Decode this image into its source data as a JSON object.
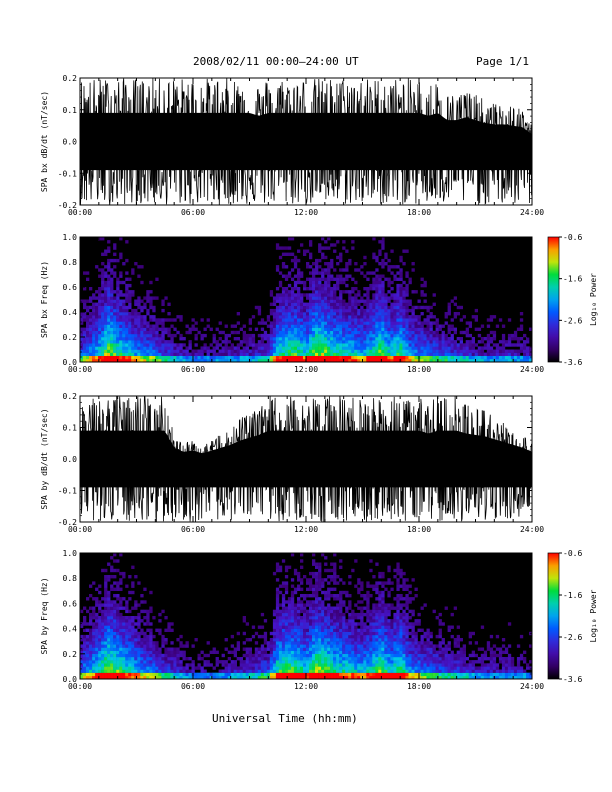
{
  "header": {
    "title": "2008/02/11   00:00–24:00 UT",
    "page": "Page 1/1"
  },
  "footer": {
    "xlabel": "Universal Time (hh:mm)"
  },
  "chart_data": [
    {
      "type": "line",
      "ylabel": "SPA bx dB/dt (nT/sec)",
      "x_ticks": [
        "00:00",
        "06:00",
        "12:00",
        "18:00",
        "24:00"
      ],
      "y_ticks": [
        "0.2",
        "0.1",
        "0.0",
        "-0.1",
        "-0.2"
      ],
      "xlim": [
        0,
        24
      ],
      "ylim": [
        -0.2,
        0.2
      ],
      "x_unit": "hours UT",
      "envelope": {
        "x": [
          0,
          0.5,
          1,
          1.5,
          2,
          2.5,
          3,
          3.5,
          4,
          4.5,
          5,
          5.5,
          6,
          6.5,
          7,
          7.5,
          8,
          8.5,
          9,
          9.5,
          10,
          10.5,
          11,
          11.5,
          12,
          12.5,
          13,
          13.5,
          14,
          14.5,
          15,
          15.5,
          16,
          16.5,
          17,
          17.5,
          18,
          18.5,
          19,
          19.5,
          20,
          20.5,
          21,
          21.5,
          22,
          22.5,
          23,
          23.5,
          24
        ],
        "upper": [
          0.2,
          0.2,
          0.2,
          0.2,
          0.2,
          0.2,
          0.2,
          0.2,
          0.2,
          0.2,
          0.2,
          0.2,
          0.2,
          0.2,
          0.2,
          0.2,
          0.2,
          0.2,
          0.2,
          0.18,
          0.2,
          0.2,
          0.2,
          0.2,
          0.2,
          0.2,
          0.2,
          0.2,
          0.2,
          0.2,
          0.2,
          0.2,
          0.2,
          0.2,
          0.2,
          0.2,
          0.2,
          0.18,
          0.2,
          0.15,
          0.15,
          0.17,
          0.15,
          0.13,
          0.12,
          0.12,
          0.11,
          0.1,
          0.05
        ],
        "lower": [
          -0.2,
          -0.2,
          -0.2,
          -0.2,
          -0.2,
          -0.2,
          -0.2,
          -0.2,
          -0.2,
          -0.2,
          -0.2,
          -0.2,
          -0.2,
          -0.2,
          -0.2,
          -0.2,
          -0.2,
          -0.2,
          -0.2,
          -0.2,
          -0.2,
          -0.2,
          -0.2,
          -0.2,
          -0.2,
          -0.2,
          -0.2,
          -0.2,
          -0.2,
          -0.2,
          -0.2,
          -0.2,
          -0.2,
          -0.2,
          -0.2,
          -0.2,
          -0.2,
          -0.2,
          -0.2,
          -0.2,
          -0.2,
          -0.2,
          -0.2,
          -0.2,
          -0.2,
          -0.2,
          -0.2,
          -0.2,
          -0.2
        ]
      }
    },
    {
      "type": "heatmap",
      "ylabel": "SPA bx Freq (Hz)",
      "x_ticks": [
        "00:00",
        "06:00",
        "12:00",
        "18:00",
        "24:00"
      ],
      "y_ticks": [
        "1.0",
        "0.8",
        "0.6",
        "0.4",
        "0.2",
        "0.0"
      ],
      "xlim": [
        0,
        24
      ],
      "ylim": [
        0,
        1.0
      ],
      "colorbar": {
        "label": "Log₁₀ Power",
        "ticks": [
          "-0.6",
          "-1.6",
          "-2.6",
          "-3.6"
        ],
        "range": [
          -3.6,
          -0.6
        ]
      },
      "activity_profile": {
        "x": [
          0,
          1,
          1.5,
          2,
          3,
          4,
          5,
          6,
          7,
          8,
          9,
          10,
          10.5,
          11,
          11.5,
          12,
          12.5,
          13,
          13.5,
          14,
          14.5,
          15,
          15.5,
          16,
          16.5,
          17,
          17.5,
          18,
          19,
          20,
          21,
          22,
          23,
          24
        ],
        "level": [
          0.45,
          0.7,
          0.95,
          0.8,
          0.6,
          0.5,
          0.35,
          0.25,
          0.25,
          0.3,
          0.3,
          0.4,
          0.75,
          0.8,
          0.85,
          0.7,
          0.95,
          0.9,
          0.8,
          0.75,
          0.7,
          0.65,
          0.75,
          0.9,
          0.7,
          0.85,
          0.6,
          0.55,
          0.45,
          0.4,
          0.3,
          0.3,
          0.3,
          0.25
        ]
      }
    },
    {
      "type": "line",
      "ylabel": "SPA by dB/dt (nT/sec)",
      "x_ticks": [
        "00:00",
        "06:00",
        "12:00",
        "18:00",
        "24:00"
      ],
      "y_ticks": [
        "0.2",
        "0.1",
        "0.0",
        "-0.1",
        "-0.2"
      ],
      "xlim": [
        0,
        24
      ],
      "ylim": [
        -0.2,
        0.2
      ],
      "x_unit": "hours UT",
      "envelope": {
        "x": [
          0,
          0.5,
          1,
          1.5,
          2,
          2.5,
          3,
          3.5,
          4,
          4.5,
          5,
          5.5,
          6,
          6.5,
          7,
          7.5,
          8,
          8.5,
          9,
          9.5,
          10,
          10.5,
          11,
          11.5,
          12,
          12.5,
          13,
          13.5,
          14,
          14.5,
          15,
          15.5,
          16,
          16.5,
          17,
          17.5,
          18,
          18.5,
          19,
          19.5,
          20,
          20.5,
          21,
          21.5,
          22,
          22.5,
          23,
          23.5,
          24
        ],
        "upper": [
          0.2,
          0.2,
          0.2,
          0.2,
          0.2,
          0.2,
          0.2,
          0.2,
          0.2,
          0.2,
          0.08,
          0.05,
          0.06,
          0.04,
          0.06,
          0.08,
          0.1,
          0.13,
          0.15,
          0.17,
          0.2,
          0.2,
          0.2,
          0.2,
          0.2,
          0.2,
          0.2,
          0.2,
          0.2,
          0.2,
          0.2,
          0.2,
          0.2,
          0.2,
          0.2,
          0.2,
          0.2,
          0.18,
          0.2,
          0.2,
          0.2,
          0.18,
          0.17,
          0.16,
          0.14,
          0.12,
          0.1,
          0.08,
          0.05
        ],
        "lower": [
          -0.2,
          -0.2,
          -0.2,
          -0.2,
          -0.2,
          -0.2,
          -0.2,
          -0.2,
          -0.2,
          -0.2,
          -0.2,
          -0.2,
          -0.2,
          -0.2,
          -0.2,
          -0.2,
          -0.2,
          -0.2,
          -0.2,
          -0.2,
          -0.2,
          -0.2,
          -0.2,
          -0.2,
          -0.2,
          -0.2,
          -0.2,
          -0.2,
          -0.2,
          -0.2,
          -0.2,
          -0.2,
          -0.2,
          -0.2,
          -0.2,
          -0.2,
          -0.2,
          -0.2,
          -0.2,
          -0.2,
          -0.2,
          -0.2,
          -0.2,
          -0.2,
          -0.2,
          -0.2,
          -0.2,
          -0.2,
          -0.2
        ]
      }
    },
    {
      "type": "heatmap",
      "ylabel": "SPA by Freq (Hz)",
      "x_ticks": [
        "00:00",
        "06:00",
        "12:00",
        "18:00",
        "24:00"
      ],
      "y_ticks": [
        "1.0",
        "0.8",
        "0.6",
        "0.4",
        "0.2",
        "0.0"
      ],
      "xlim": [
        0,
        24
      ],
      "ylim": [
        0,
        1.0
      ],
      "colorbar": {
        "label": "Log₁₀ Power",
        "ticks": [
          "-0.6",
          "-1.6",
          "-2.6",
          "-3.6"
        ],
        "range": [
          -3.6,
          -0.6
        ]
      },
      "activity_profile": {
        "x": [
          0,
          1,
          1.5,
          2,
          3,
          4,
          5,
          6,
          7,
          8,
          9,
          10,
          10.5,
          11,
          11.5,
          12,
          12.5,
          13,
          13.5,
          14,
          14.5,
          15,
          15.5,
          16,
          16.5,
          17,
          17.5,
          18,
          19,
          20,
          21,
          22,
          23,
          24
        ],
        "level": [
          0.5,
          0.75,
          0.95,
          0.85,
          0.65,
          0.5,
          0.35,
          0.25,
          0.25,
          0.3,
          0.35,
          0.45,
          0.8,
          0.85,
          0.85,
          0.7,
          0.95,
          0.9,
          0.8,
          0.75,
          0.7,
          0.65,
          0.75,
          0.9,
          0.7,
          0.85,
          0.6,
          0.55,
          0.45,
          0.4,
          0.3,
          0.3,
          0.3,
          0.25
        ]
      }
    }
  ]
}
